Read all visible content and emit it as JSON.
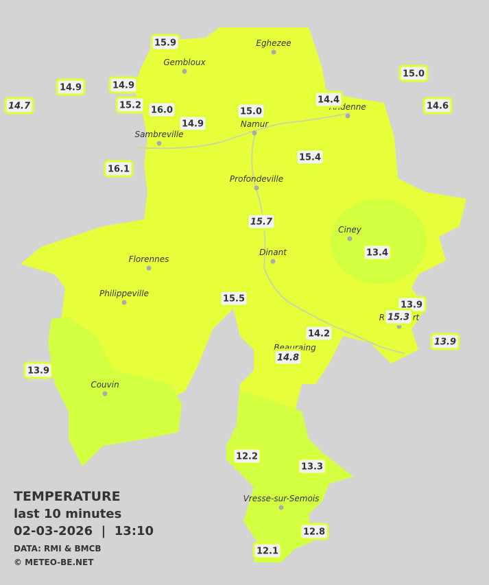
{
  "towns": [
    "Eghezee",
    "Gembloux",
    "Andenne",
    "Namur",
    "Sambreville",
    "Profondeville",
    "Ciney",
    "Dinant",
    "Florennes",
    "Philippeville",
    "Beauraing",
    "Rochefort",
    "Couvin",
    "Vresse-sur-Semois"
  ],
  "stations": [
    {
      "label": "15.9"
    },
    {
      "label": "14.9"
    },
    {
      "label": "14.9"
    },
    {
      "label": "14.7",
      "italic": true
    },
    {
      "label": "15.2"
    },
    {
      "label": "16.0"
    },
    {
      "label": "14.9"
    },
    {
      "label": "16.1"
    },
    {
      "label": "15.0"
    },
    {
      "label": "14.4"
    },
    {
      "label": "15.0"
    },
    {
      "label": "14.6"
    },
    {
      "label": "15.4"
    },
    {
      "label": "15.7",
      "italic": true
    },
    {
      "label": "13.4"
    },
    {
      "label": "15.5"
    },
    {
      "label": "13.9"
    },
    {
      "label": "15.3",
      "italic": true
    },
    {
      "label": "14.2"
    },
    {
      "label": "13.9",
      "italic": true
    },
    {
      "label": "14.8",
      "italic": true
    },
    {
      "label": "13.9"
    },
    {
      "label": "12.2"
    },
    {
      "label": "13.3"
    },
    {
      "label": "12.8"
    },
    {
      "label": "12.1"
    }
  ],
  "legend": {
    "title": "TEMPERATURE",
    "subtitle": "last 10 minutes",
    "date": "02-03-2026  |  13:10",
    "source": "DATA: RMI & BMCB",
    "credit": "© METEO-BE.NET"
  }
}
